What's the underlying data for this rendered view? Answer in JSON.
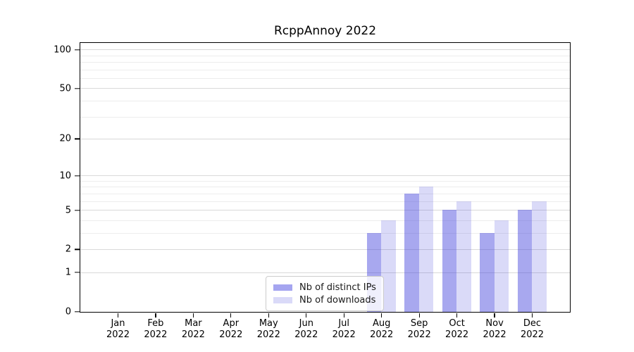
{
  "chart_data": {
    "type": "bar",
    "title": "RcppAnnoy 2022",
    "xlabel": "",
    "ylabel": "",
    "categories": [
      "Jan",
      "Feb",
      "Mar",
      "Apr",
      "May",
      "Jun",
      "Jul",
      "Aug",
      "Sep",
      "Oct",
      "Nov",
      "Dec"
    ],
    "category_year": "2022",
    "series": [
      {
        "name": "Nb of distinct IPs",
        "color": "#a5a5f0",
        "fill": "rgba(70,70,220,0.47)",
        "values": [
          0,
          0,
          0,
          0,
          0,
          0,
          0,
          3,
          7,
          5,
          3,
          5
        ]
      },
      {
        "name": "Nb of downloads",
        "color": "#dadaf8",
        "fill": "rgba(70,70,220,0.20)",
        "values": [
          0,
          0,
          0,
          0,
          0,
          0,
          0,
          4,
          8,
          6,
          4,
          6
        ]
      }
    ],
    "y_axis": {
      "scale": "log10(1+y)",
      "ylim": [
        0,
        112
      ],
      "ticks": [
        100,
        50,
        20,
        10,
        5,
        2,
        1,
        0
      ],
      "minor_gridlines": [
        3,
        4,
        6,
        7,
        8,
        9,
        30,
        40,
        60,
        70,
        80,
        90
      ],
      "grid": "on"
    },
    "legend_position": "lower center, inside plot",
    "colors": {
      "grid_major": "#d9d9d9",
      "grid_minor": "#ededed",
      "spine": "#000000",
      "text": "#000000",
      "legend_border": "#cccccc"
    }
  }
}
